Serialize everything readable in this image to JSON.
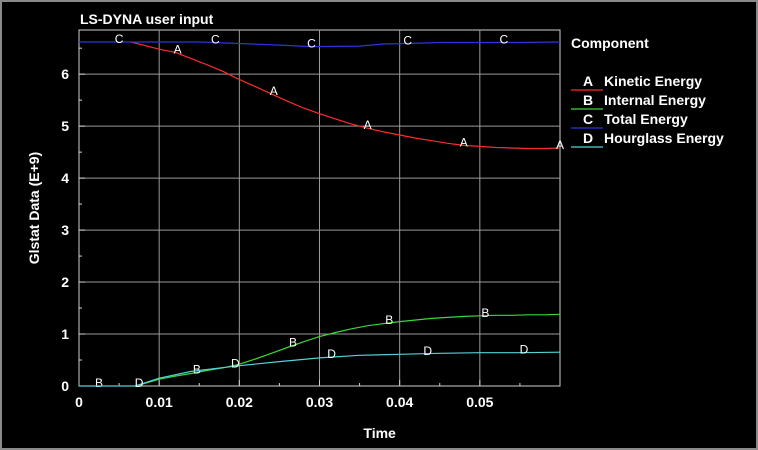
{
  "chart_data": {
    "type": "line",
    "title": "LS-DYNA user input",
    "xlabel": "Time",
    "ylabel": "Glstat Data (E+9)",
    "xlim": [
      0,
      0.06
    ],
    "ylim": [
      0,
      6.85
    ],
    "xticks": [
      {
        "value": 0,
        "label": "0"
      },
      {
        "value": 0.01,
        "label": "0.01"
      },
      {
        "value": 0.02,
        "label": "0.02"
      },
      {
        "value": 0.03,
        "label": "0.03"
      },
      {
        "value": 0.04,
        "label": "0.04"
      },
      {
        "value": 0.05,
        "label": "0.05"
      }
    ],
    "yticks": [
      {
        "value": 0,
        "label": "0"
      },
      {
        "value": 1,
        "label": "1"
      },
      {
        "value": 2,
        "label": "2"
      },
      {
        "value": 3,
        "label": "3"
      },
      {
        "value": 4,
        "label": "4"
      },
      {
        "value": 5,
        "label": "5"
      },
      {
        "value": 6,
        "label": "6"
      }
    ],
    "grid": true,
    "legend_title": "Component",
    "legend_position": "right",
    "series": [
      {
        "marker": "A",
        "name": "Kinetic Energy",
        "color": "#ff2a2a",
        "x": [
          0.0065,
          0.008,
          0.01,
          0.012,
          0.014,
          0.016,
          0.018,
          0.02,
          0.022,
          0.024,
          0.026,
          0.028,
          0.03,
          0.032,
          0.034,
          0.036,
          0.038,
          0.04,
          0.042,
          0.044,
          0.046,
          0.048,
          0.05,
          0.052,
          0.054,
          0.056,
          0.058,
          0.06
        ],
        "y": [
          6.62,
          6.56,
          6.48,
          6.42,
          6.3,
          6.18,
          6.05,
          5.9,
          5.76,
          5.62,
          5.48,
          5.35,
          5.24,
          5.14,
          5.04,
          4.96,
          4.89,
          4.83,
          4.77,
          4.72,
          4.67,
          4.63,
          4.61,
          4.59,
          4.58,
          4.57,
          4.57,
          4.58
        ],
        "marker_x": [
          0.0123,
          0.0243,
          0.036,
          0.048,
          0.06
        ],
        "marker_y": [
          6.42,
          5.62,
          4.96,
          4.63,
          4.58
        ]
      },
      {
        "marker": "B",
        "name": "Internal Energy",
        "color": "#38d838",
        "x": [
          0.007,
          0.008,
          0.01,
          0.012,
          0.014,
          0.016,
          0.018,
          0.02,
          0.022,
          0.024,
          0.026,
          0.028,
          0.03,
          0.032,
          0.034,
          0.036,
          0.038,
          0.04,
          0.042,
          0.044,
          0.046,
          0.048,
          0.05,
          0.052,
          0.054,
          0.056,
          0.058,
          0.06
        ],
        "y": [
          0.0,
          0.04,
          0.13,
          0.19,
          0.24,
          0.3,
          0.35,
          0.42,
          0.52,
          0.63,
          0.74,
          0.85,
          0.95,
          1.03,
          1.1,
          1.16,
          1.2,
          1.24,
          1.27,
          1.3,
          1.32,
          1.34,
          1.35,
          1.36,
          1.36,
          1.37,
          1.37,
          1.38
        ],
        "marker_x": [
          0.0025,
          0.0147,
          0.0267,
          0.0387,
          0.0507
        ],
        "marker_y": [
          0.0,
          0.26,
          0.78,
          1.21,
          1.35
        ]
      },
      {
        "marker": "C",
        "name": "Total Energy",
        "color": "#2b36d8",
        "x": [
          0.0,
          0.005,
          0.01,
          0.015,
          0.02,
          0.025,
          0.029,
          0.035,
          0.038,
          0.041,
          0.045,
          0.05,
          0.055,
          0.06
        ],
        "y": [
          6.62,
          6.62,
          6.62,
          6.62,
          6.59,
          6.56,
          6.53,
          6.54,
          6.58,
          6.59,
          6.61,
          6.61,
          6.61,
          6.62
        ],
        "marker_x": [
          0.005,
          0.017,
          0.029,
          0.041,
          0.053
        ],
        "marker_y": [
          6.62,
          6.61,
          6.53,
          6.59,
          6.61
        ]
      },
      {
        "marker": "D",
        "name": "Hourglass Energy",
        "color": "#55d0d8",
        "x": [
          0.0,
          0.007,
          0.01,
          0.014,
          0.02,
          0.025,
          0.03,
          0.035,
          0.04,
          0.045,
          0.05,
          0.055,
          0.06
        ],
        "y": [
          0.0,
          0.0,
          0.15,
          0.28,
          0.39,
          0.47,
          0.54,
          0.59,
          0.61,
          0.63,
          0.64,
          0.64,
          0.65
        ],
        "marker_x": [
          0.0075,
          0.0195,
          0.0315,
          0.0435,
          0.0555
        ],
        "marker_y": [
          0.0,
          0.38,
          0.56,
          0.62,
          0.64
        ]
      }
    ]
  }
}
